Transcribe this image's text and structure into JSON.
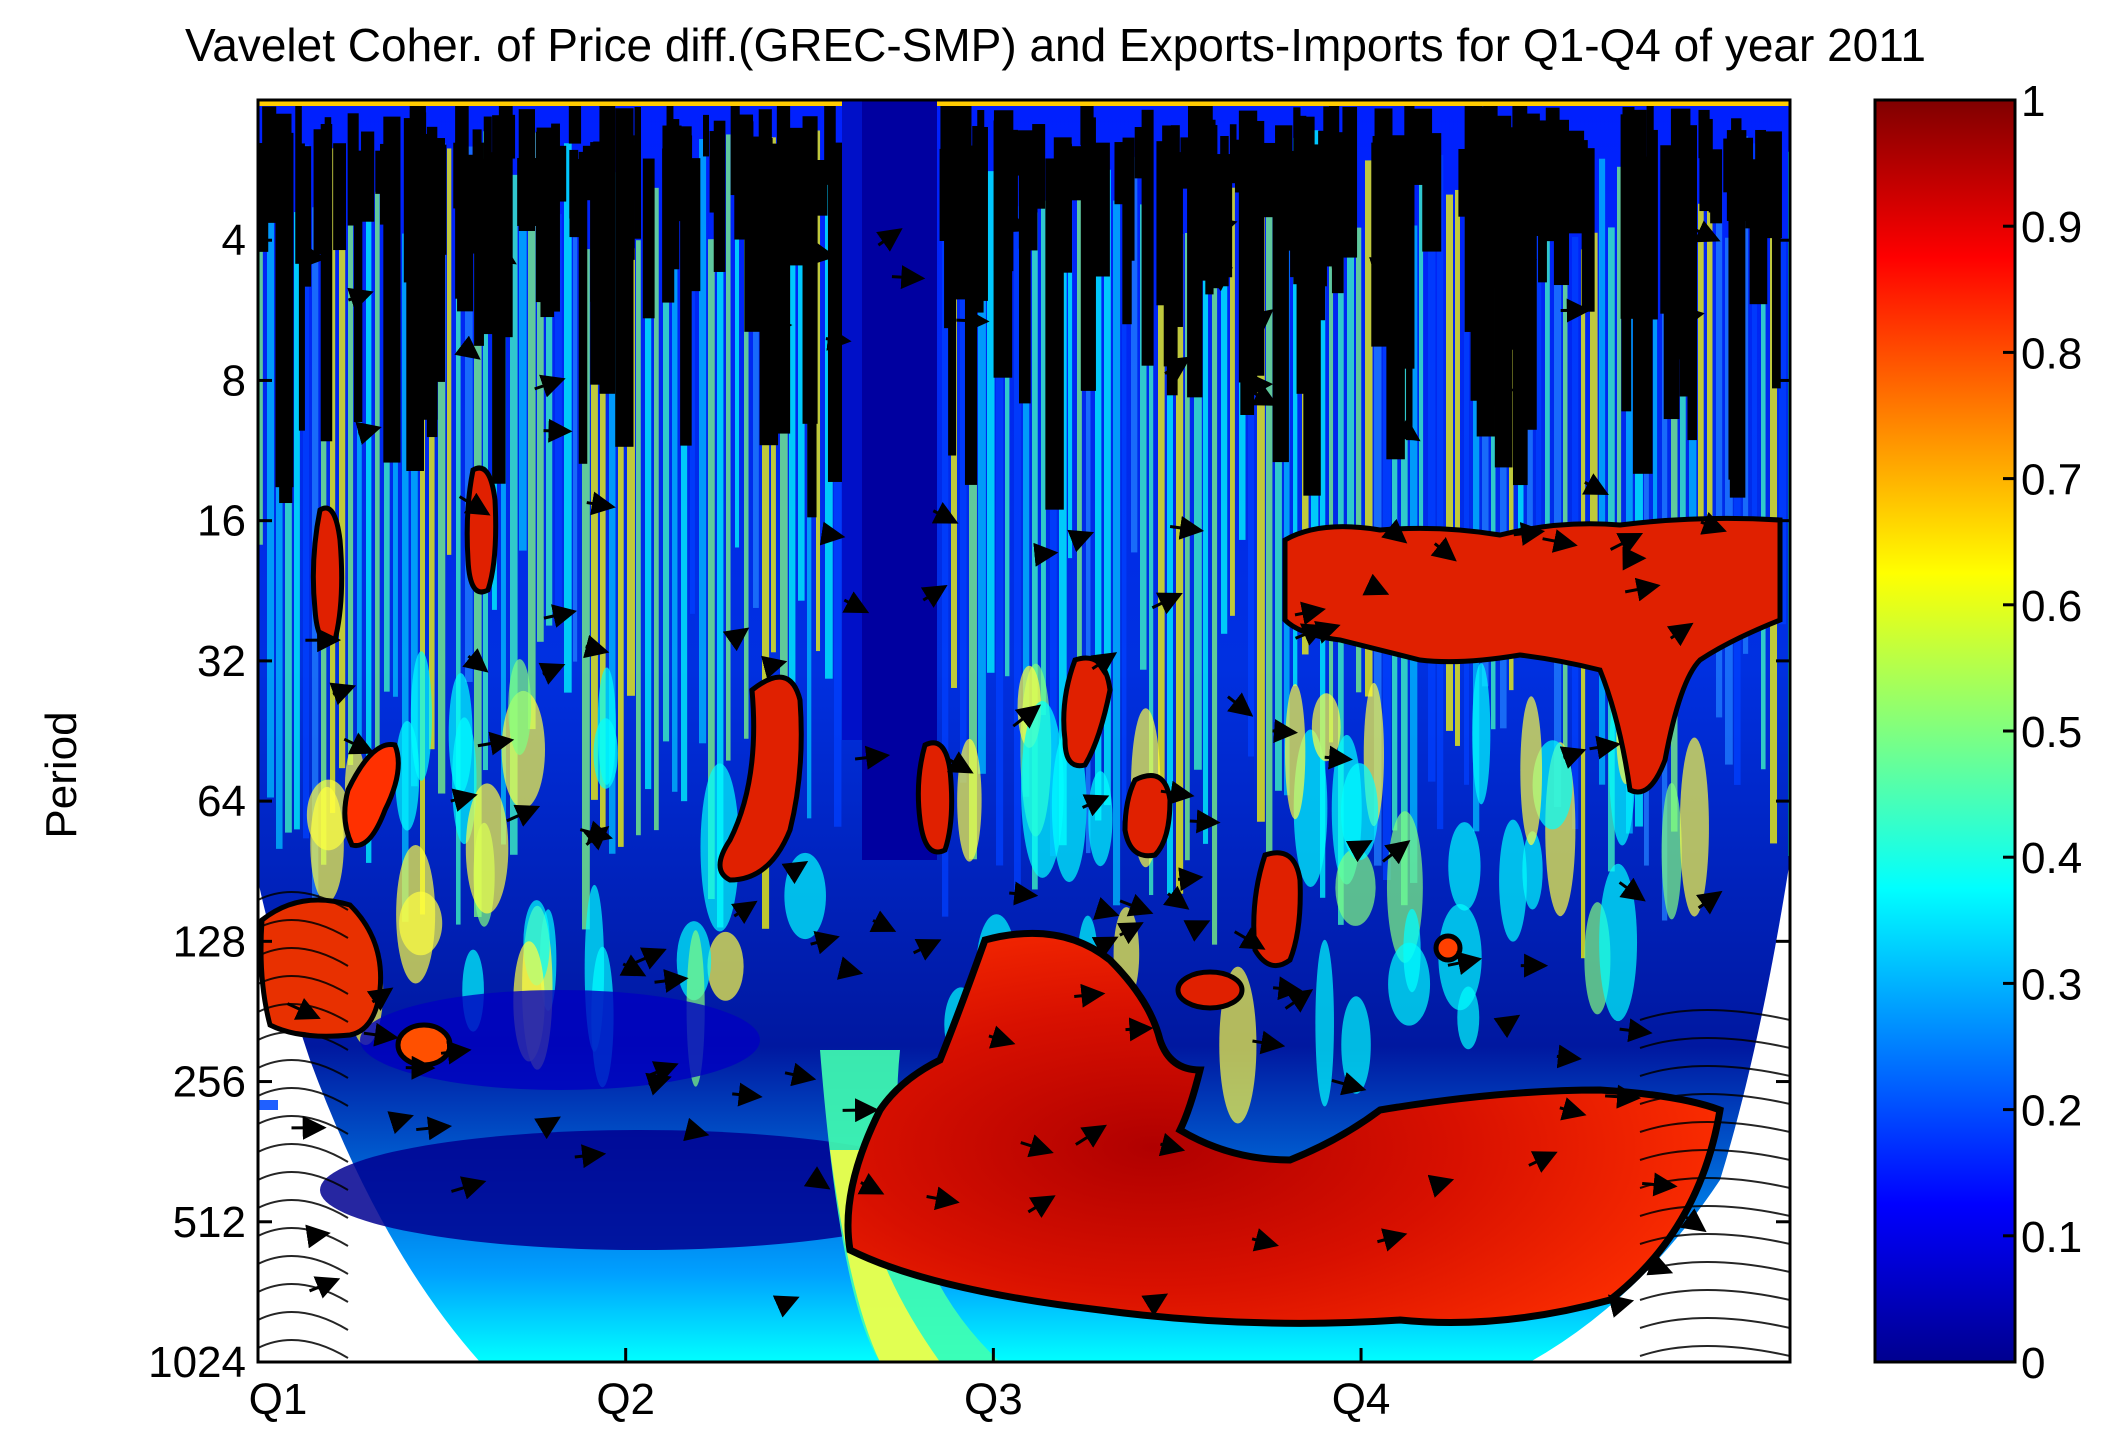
{
  "chart_data": {
    "type": "heatmap",
    "title": "Vavelet Coher. of Price diff.(GREC-SMP) and Exports-Imports for Q1-Q4 of year 2011",
    "xlabel": "",
    "ylabel": "Period",
    "x_ticks": [
      "Q1",
      "Q2",
      "Q3",
      "Q4"
    ],
    "y_ticks": [
      4,
      8,
      16,
      32,
      64,
      128,
      256,
      512,
      1024
    ],
    "y_scale": "log2",
    "y_range": [
      2,
      1024
    ],
    "colorbar": {
      "ticks": [
        0,
        0.1,
        0.2,
        0.3,
        0.4,
        0.5,
        0.6,
        0.7,
        0.8,
        0.9,
        1
      ],
      "range": [
        0,
        1
      ],
      "colormap": "jet"
    },
    "colors": {
      "dark_red": "#800000",
      "red": "#ff2000",
      "yellow": "#ffff00",
      "cyan": "#00ffff",
      "dark_blue": "#00008f"
    }
  }
}
